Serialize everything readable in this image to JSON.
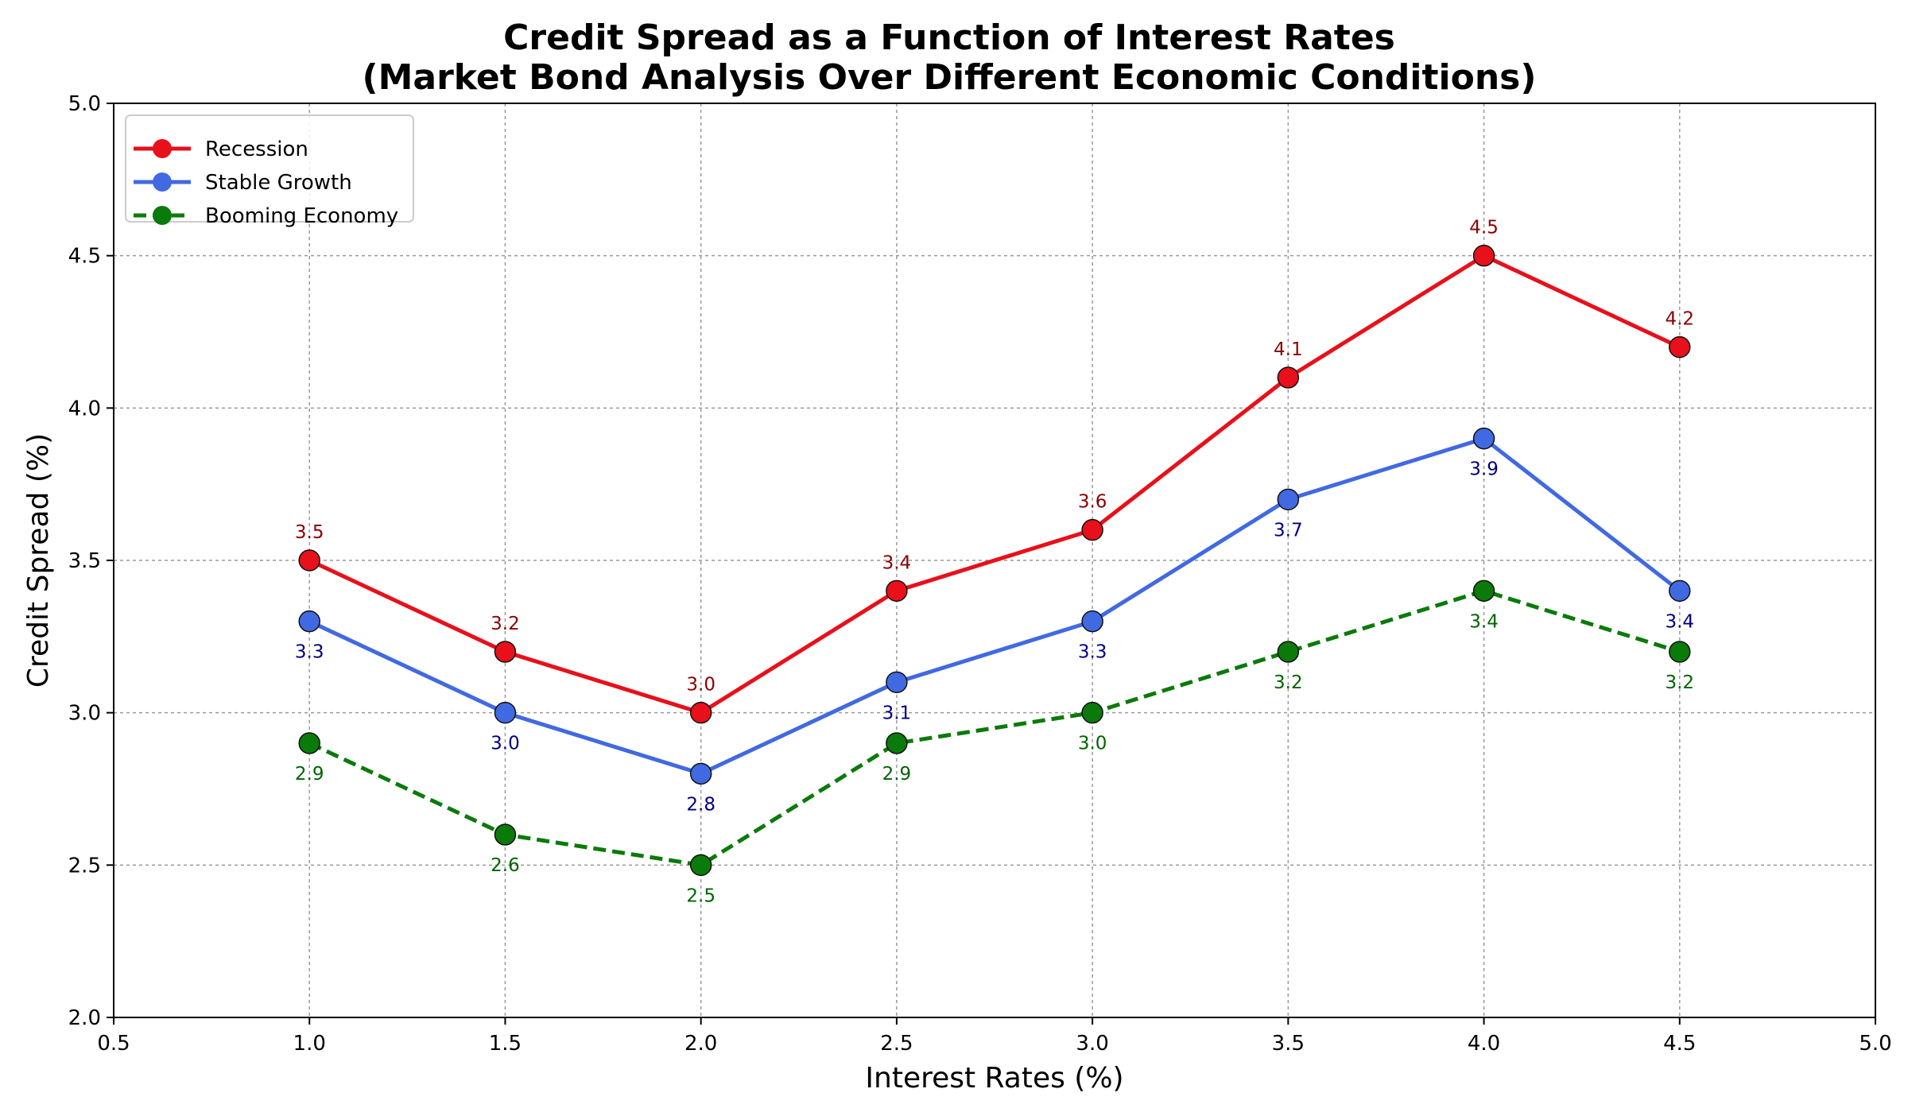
{
  "chart_data": {
    "type": "line",
    "title": "Credit Spread as a Function of Interest Rates",
    "subtitle": "(Market Bond Analysis Over Different Economic Conditions)",
    "xlabel": "Interest Rates (%)",
    "ylabel": "Credit Spread (%)",
    "x": [
      1.0,
      1.5,
      2.0,
      2.5,
      3.0,
      3.5,
      4.0,
      4.5
    ],
    "xlim": [
      0.5,
      5.0
    ],
    "ylim": [
      2.0,
      5.0
    ],
    "xticks": [
      "0.5",
      "1.0",
      "1.5",
      "2.0",
      "2.5",
      "3.0",
      "3.5",
      "4.0",
      "4.5",
      "5.0"
    ],
    "yticks": [
      "2.0",
      "2.5",
      "3.0",
      "3.5",
      "4.0",
      "4.5",
      "5.0"
    ],
    "grid": true,
    "legend_position": "top-left",
    "series": [
      {
        "name": "Recession",
        "values": [
          3.5,
          3.2,
          3.0,
          3.4,
          3.6,
          4.1,
          4.5,
          4.2
        ],
        "labels": [
          "3.5",
          "3.2",
          "3.0",
          "3.4",
          "3.6",
          "4.1",
          "4.5",
          "4.2"
        ],
        "color": "#e8101a",
        "label_color": "#8b0000",
        "label_position": "above",
        "dashed": false
      },
      {
        "name": "Stable Growth",
        "values": [
          3.3,
          3.0,
          2.8,
          3.1,
          3.3,
          3.7,
          3.9,
          3.4
        ],
        "labels": [
          "3.3",
          "3.0",
          "2.8",
          "3.1",
          "3.3",
          "3.7",
          "3.9",
          "3.4"
        ],
        "color": "#4169e1",
        "label_color": "#000080",
        "label_position": "below",
        "dashed": false
      },
      {
        "name": "Booming Economy",
        "values": [
          2.9,
          2.6,
          2.5,
          2.9,
          3.0,
          3.2,
          3.4,
          3.2
        ],
        "labels": [
          "2.9",
          "2.6",
          "2.5",
          "2.9",
          "3.0",
          "3.2",
          "3.4",
          "3.2"
        ],
        "color": "#0a7a0a",
        "label_color": "#006400",
        "label_position": "below",
        "dashed": true
      }
    ]
  }
}
